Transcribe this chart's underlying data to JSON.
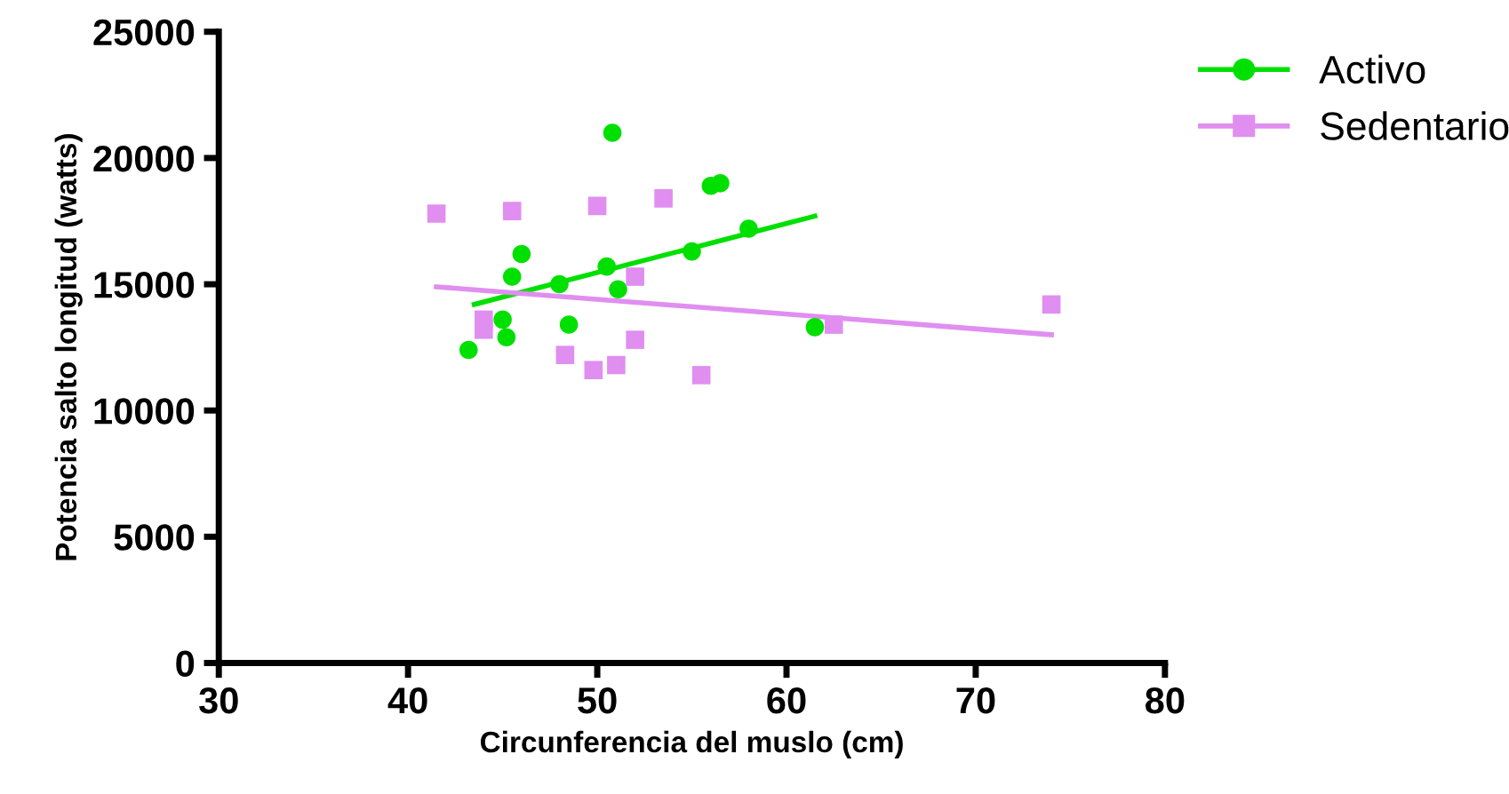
{
  "chart_data": {
    "type": "scatter",
    "xlabel": "Circunferencia del muslo (cm)",
    "ylabel": "Potencia salto longitud (watts)",
    "xlim": [
      30,
      80
    ],
    "xticks": [
      30,
      40,
      50,
      60,
      70,
      80
    ],
    "ylim": [
      0,
      25000
    ],
    "yticks": [
      0,
      5000,
      10000,
      15000,
      20000,
      25000
    ],
    "grid": false,
    "legend": "top right",
    "series": [
      {
        "name": "Activo",
        "color": "#00e000",
        "marker": "circle",
        "x": [
          43.2,
          45.0,
          45.2,
          45.5,
          46.0,
          48.0,
          48.5,
          50.8,
          50.5,
          51.1,
          55.0,
          56.0,
          56.5,
          58.0,
          61.5
        ],
        "values": [
          12400,
          13600,
          12900,
          15300,
          16200,
          15000,
          13400,
          21000,
          15700,
          14800,
          16300,
          18900,
          19000,
          17200,
          13300
        ]
      },
      {
        "name": "Sedentario",
        "color": "#e08ef0",
        "marker": "square",
        "x": [
          41.5,
          45.5,
          44.0,
          44.0,
          50.0,
          53.5,
          52.0,
          52.0,
          48.3,
          49.8,
          51.0,
          55.5,
          62.5,
          74.0
        ],
        "values": [
          17800,
          17900,
          13600,
          13200,
          18100,
          18400,
          15300,
          12800,
          12200,
          11600,
          11800,
          11400,
          13400,
          14200
        ]
      },
      {
        "type": "line",
        "color": "#00e000",
        "marker": "none",
        "x": [
          43.5,
          61.5
        ],
        "values": [
          14200,
          17700
        ]
      },
      {
        "type": "line",
        "color": "#e08ef0",
        "marker": "none",
        "x": [
          41.5,
          74.0
        ],
        "values": [
          14900,
          13000
        ]
      }
    ]
  }
}
